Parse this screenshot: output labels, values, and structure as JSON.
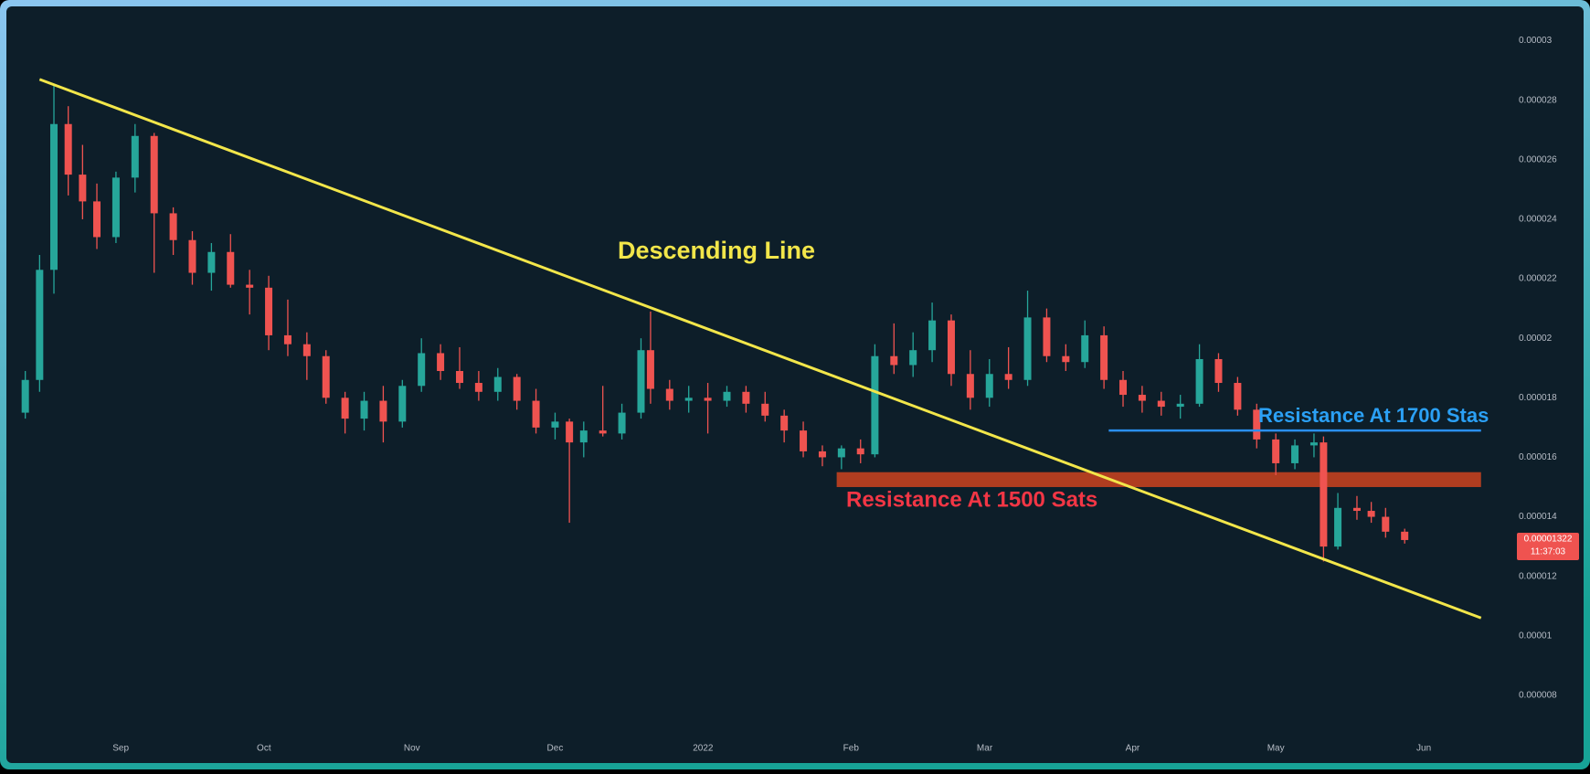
{
  "chart_data": {
    "type": "candlestick",
    "up_color": "#26a69a",
    "down_color": "#ef5350",
    "xlim": [
      "2021-08-09",
      "2022-07-02"
    ],
    "ylim": [
      6.8e-06,
      3.1e-05
    ],
    "yticks": [
      3e-05,
      2.8e-05,
      2.6e-05,
      2.4e-05,
      2.2e-05,
      2e-05,
      1.8e-05,
      1.6e-05,
      1.4e-05,
      1.2e-05,
      1e-05,
      8e-06
    ],
    "xticks": [
      {
        "value": "2021-09-01",
        "label": "Sep"
      },
      {
        "value": "2021-10-01",
        "label": "Oct"
      },
      {
        "value": "2021-11-01",
        "label": "Nov"
      },
      {
        "value": "2021-12-01",
        "label": "Dec"
      },
      {
        "value": "2022-01-01",
        "label": "2022"
      },
      {
        "value": "2022-02-01",
        "label": "Feb"
      },
      {
        "value": "2022-03-01",
        "label": "Mar"
      },
      {
        "value": "2022-04-01",
        "label": "Apr"
      },
      {
        "value": "2022-05-01",
        "label": "May"
      },
      {
        "value": "2022-06-01",
        "label": "Jun"
      }
    ],
    "dates": [
      "2021-08-12",
      "2021-08-15",
      "2021-08-18",
      "2021-08-21",
      "2021-08-24",
      "2021-08-27",
      "2021-08-31",
      "2021-09-04",
      "2021-09-08",
      "2021-09-12",
      "2021-09-16",
      "2021-09-20",
      "2021-09-24",
      "2021-09-28",
      "2021-10-02",
      "2021-10-06",
      "2021-10-10",
      "2021-10-14",
      "2021-10-18",
      "2021-10-22",
      "2021-10-26",
      "2021-10-30",
      "2021-11-03",
      "2021-11-07",
      "2021-11-11",
      "2021-11-15",
      "2021-11-19",
      "2021-11-23",
      "2021-11-27",
      "2021-12-01",
      "2021-12-04",
      "2021-12-07",
      "2021-12-11",
      "2021-12-15",
      "2021-12-19",
      "2021-12-21",
      "2021-12-25",
      "2021-12-29",
      "2022-01-02",
      "2022-01-06",
      "2022-01-10",
      "2022-01-14",
      "2022-01-18",
      "2022-01-22",
      "2022-01-26",
      "2022-01-30",
      "2022-02-03",
      "2022-02-06",
      "2022-02-10",
      "2022-02-14",
      "2022-02-18",
      "2022-02-22",
      "2022-02-26",
      "2022-03-02",
      "2022-03-06",
      "2022-03-10",
      "2022-03-14",
      "2022-03-18",
      "2022-03-22",
      "2022-03-26",
      "2022-03-30",
      "2022-04-03",
      "2022-04-07",
      "2022-04-11",
      "2022-04-15",
      "2022-04-19",
      "2022-04-23",
      "2022-04-27",
      "2022-05-01",
      "2022-05-05",
      "2022-05-09",
      "2022-05-11",
      "2022-05-14",
      "2022-05-18",
      "2022-05-21",
      "2022-05-24",
      "2022-05-28"
    ],
    "open": [
      1.75e-05,
      1.86e-05,
      2.23e-05,
      2.72e-05,
      2.55e-05,
      2.46e-05,
      2.34e-05,
      2.54e-05,
      2.68e-05,
      2.42e-05,
      2.33e-05,
      2.22e-05,
      2.29e-05,
      2.18e-05,
      2.17e-05,
      2.01e-05,
      1.98e-05,
      1.94e-05,
      1.8e-05,
      1.73e-05,
      1.79e-05,
      1.72e-05,
      1.84e-05,
      1.95e-05,
      1.89e-05,
      1.85e-05,
      1.82e-05,
      1.87e-05,
      1.79e-05,
      1.7e-05,
      1.72e-05,
      1.65e-05,
      1.69e-05,
      1.68e-05,
      1.75e-05,
      1.96e-05,
      1.83e-05,
      1.79e-05,
      1.8e-05,
      1.79e-05,
      1.82e-05,
      1.78e-05,
      1.74e-05,
      1.69e-05,
      1.62e-05,
      1.6e-05,
      1.63e-05,
      1.61e-05,
      1.94e-05,
      1.91e-05,
      1.96e-05,
      2.06e-05,
      1.88e-05,
      1.8e-05,
      1.88e-05,
      1.86e-05,
      2.07e-05,
      1.94e-05,
      1.92e-05,
      2.01e-05,
      1.86e-05,
      1.81e-05,
      1.79e-05,
      1.77e-05,
      1.78e-05,
      1.93e-05,
      1.85e-05,
      1.76e-05,
      1.66e-05,
      1.58e-05,
      1.64e-05,
      1.65e-05,
      1.3e-05,
      1.43e-05,
      1.42e-05,
      1.4e-05,
      1.35e-05
    ],
    "high": [
      1.89e-05,
      2.28e-05,
      2.85e-05,
      2.78e-05,
      2.65e-05,
      2.52e-05,
      2.56e-05,
      2.72e-05,
      2.69e-05,
      2.44e-05,
      2.36e-05,
      2.32e-05,
      2.35e-05,
      2.23e-05,
      2.21e-05,
      2.13e-05,
      2.02e-05,
      1.96e-05,
      1.82e-05,
      1.82e-05,
      1.84e-05,
      1.86e-05,
      2e-05,
      1.98e-05,
      1.97e-05,
      1.89e-05,
      1.9e-05,
      1.88e-05,
      1.83e-05,
      1.75e-05,
      1.73e-05,
      1.72e-05,
      1.84e-05,
      1.78e-05,
      2e-05,
      2.09e-05,
      1.86e-05,
      1.84e-05,
      1.85e-05,
      1.84e-05,
      1.84e-05,
      1.82e-05,
      1.76e-05,
      1.72e-05,
      1.64e-05,
      1.64e-05,
      1.66e-05,
      1.98e-05,
      2.05e-05,
      2.02e-05,
      2.12e-05,
      2.08e-05,
      1.96e-05,
      1.93e-05,
      1.97e-05,
      2.16e-05,
      2.1e-05,
      1.98e-05,
      2.06e-05,
      2.04e-05,
      1.89e-05,
      1.84e-05,
      1.82e-05,
      1.81e-05,
      1.98e-05,
      1.95e-05,
      1.87e-05,
      1.78e-05,
      1.68e-05,
      1.66e-05,
      1.68e-05,
      1.67e-05,
      1.48e-05,
      1.47e-05,
      1.45e-05,
      1.43e-05,
      1.36e-05
    ],
    "low": [
      1.73e-05,
      1.82e-05,
      2.15e-05,
      2.48e-05,
      2.4e-05,
      2.3e-05,
      2.32e-05,
      2.49e-05,
      2.22e-05,
      2.28e-05,
      2.18e-05,
      2.16e-05,
      2.17e-05,
      2.08e-05,
      1.96e-05,
      1.94e-05,
      1.86e-05,
      1.78e-05,
      1.68e-05,
      1.69e-05,
      1.65e-05,
      1.7e-05,
      1.82e-05,
      1.86e-05,
      1.83e-05,
      1.79e-05,
      1.79e-05,
      1.76e-05,
      1.68e-05,
      1.66e-05,
      1.38e-05,
      1.6e-05,
      1.67e-05,
      1.66e-05,
      1.73e-05,
      1.78e-05,
      1.76e-05,
      1.75e-05,
      1.68e-05,
      1.77e-05,
      1.75e-05,
      1.72e-05,
      1.65e-05,
      1.6e-05,
      1.57e-05,
      1.56e-05,
      1.58e-05,
      1.6e-05,
      1.88e-05,
      1.87e-05,
      1.92e-05,
      1.84e-05,
      1.76e-05,
      1.77e-05,
      1.83e-05,
      1.84e-05,
      1.92e-05,
      1.89e-05,
      1.9e-05,
      1.83e-05,
      1.77e-05,
      1.75e-05,
      1.74e-05,
      1.73e-05,
      1.77e-05,
      1.82e-05,
      1.74e-05,
      1.63e-05,
      1.54e-05,
      1.56e-05,
      1.6e-05,
      1.25e-05,
      1.29e-05,
      1.39e-05,
      1.38e-05,
      1.33e-05,
      1.31e-05
    ],
    "close": [
      1.86e-05,
      2.23e-05,
      2.72e-05,
      2.55e-05,
      2.46e-05,
      2.34e-05,
      2.54e-05,
      2.68e-05,
      2.42e-05,
      2.33e-05,
      2.22e-05,
      2.29e-05,
      2.18e-05,
      2.17e-05,
      2.01e-05,
      1.98e-05,
      1.94e-05,
      1.8e-05,
      1.73e-05,
      1.79e-05,
      1.72e-05,
      1.84e-05,
      1.95e-05,
      1.89e-05,
      1.85e-05,
      1.82e-05,
      1.87e-05,
      1.79e-05,
      1.7e-05,
      1.72e-05,
      1.65e-05,
      1.69e-05,
      1.68e-05,
      1.75e-05,
      1.96e-05,
      1.83e-05,
      1.79e-05,
      1.8e-05,
      1.79e-05,
      1.82e-05,
      1.78e-05,
      1.74e-05,
      1.69e-05,
      1.62e-05,
      1.6e-05,
      1.63e-05,
      1.61e-05,
      1.94e-05,
      1.91e-05,
      1.96e-05,
      2.06e-05,
      1.88e-05,
      1.8e-05,
      1.88e-05,
      1.86e-05,
      2.07e-05,
      1.94e-05,
      1.92e-05,
      2.01e-05,
      1.86e-05,
      1.81e-05,
      1.79e-05,
      1.77e-05,
      1.78e-05,
      1.93e-05,
      1.85e-05,
      1.76e-05,
      1.66e-05,
      1.58e-05,
      1.64e-05,
      1.65e-05,
      1.3e-05,
      1.43e-05,
      1.42e-05,
      1.4e-05,
      1.35e-05,
      1.322e-05
    ],
    "countdown": "11:37:03",
    "trend_line": {
      "label": "Descending Line",
      "color": "#f2e64a",
      "start": {
        "date": "2021-08-15",
        "value": 2.87e-05
      },
      "end": {
        "date": "2022-06-13",
        "value": 1.06e-05
      }
    },
    "support_band": {
      "label": "Resistance At 1500 Sats",
      "color": "#c2401f",
      "label_color": "#f23645",
      "from": "2022-01-29",
      "to": "2022-06-13",
      "low": 1.5e-05,
      "high": 1.55e-05
    },
    "resistance_line": {
      "label": "Resistance At 1700 Stas",
      "color": "#2a8ff0",
      "label_color": "#2ba0f5",
      "from": "2022-03-27",
      "to": "2022-06-13",
      "value": 1.69e-05
    }
  }
}
